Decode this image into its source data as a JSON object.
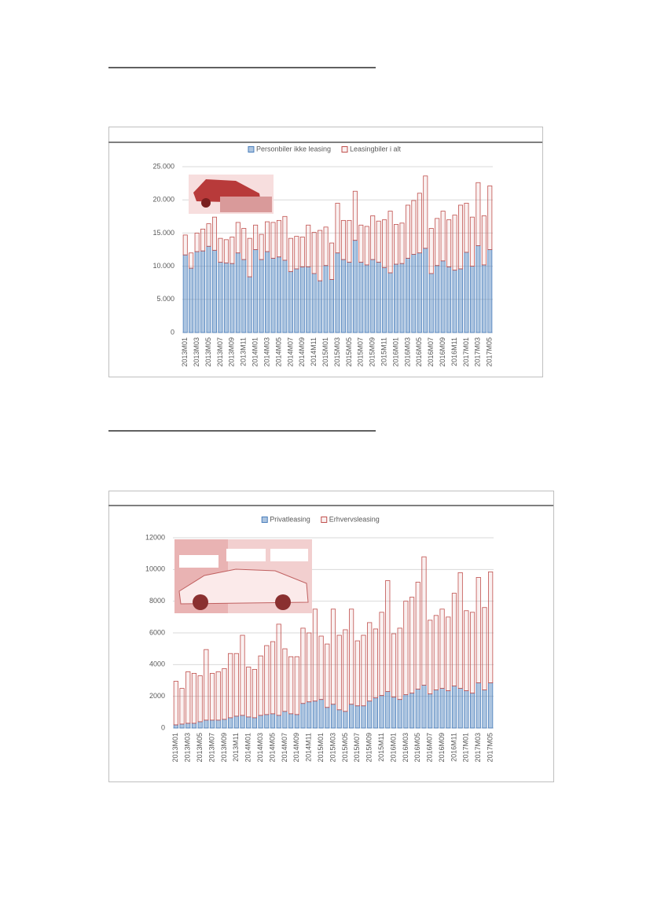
{
  "chart_data": [
    {
      "type": "bar",
      "stacked": true,
      "legend": "top",
      "categories": [
        "2013M01",
        null,
        "2013M03",
        null,
        "2013M05",
        null,
        "2013M07",
        null,
        "2013M09",
        null,
        "2013M11",
        null,
        "2014M01",
        null,
        "2014M03",
        null,
        "2014M05",
        null,
        "2014M07",
        null,
        "2014M09",
        null,
        "2014M11",
        null,
        "2015M01",
        null,
        "2015M03",
        null,
        "2015M05",
        null,
        "2015M07",
        null,
        "2015M09",
        null,
        "2015M11",
        null,
        "2016M01",
        null,
        "2016M03",
        null,
        "2016M05",
        null,
        "2016M07",
        null,
        "2016M09",
        null,
        "2016M11",
        null,
        "2017M01",
        null,
        "2017M03",
        null,
        "2017M05"
      ],
      "series": [
        {
          "name": "Personbiler ikke leasing",
          "color": "#4a7ebb",
          "values": [
            11700,
            9700,
            12200,
            12300,
            13000,
            12400,
            10600,
            10500,
            10400,
            12000,
            11000,
            8400,
            12500,
            11000,
            12200,
            11200,
            11400,
            10900,
            9200,
            9600,
            9900,
            9900,
            8900,
            7800,
            10100,
            8000,
            12000,
            11000,
            10600,
            13900,
            10600,
            10200,
            11000,
            10600,
            9800,
            9000,
            10300,
            10400,
            11200,
            11800,
            12000,
            12700,
            8900,
            10100,
            10800,
            9900,
            9400,
            9600,
            12100,
            10000,
            13100,
            10200,
            12500
          ]
        },
        {
          "name": "Leasingbiler i alt",
          "color": "#c0504d",
          "values": [
            3000,
            2300,
            2800,
            3300,
            3400,
            5000,
            3600,
            3500,
            4000,
            4600,
            4700,
            5800,
            3700,
            3800,
            4500,
            5400,
            5500,
            6600,
            5000,
            4900,
            4500,
            6300,
            6200,
            7600,
            5800,
            5500,
            7500,
            5900,
            6300,
            7400,
            5600,
            5800,
            6600,
            6200,
            7200,
            9300,
            6000,
            6100,
            8000,
            8100,
            9000,
            10900,
            6800,
            7100,
            7500,
            7100,
            8300,
            9600,
            7400,
            7400,
            9500,
            7400,
            9600
          ]
        }
      ],
      "ylim": [
        0,
        25000
      ],
      "yticks": [
        0,
        {
          "value": 5000,
          "label": "5.000"
        },
        {
          "value": 10000,
          "label": "10.000"
        },
        {
          "value": 15000,
          "label": "15.000"
        },
        {
          "value": 20000,
          "label": "20.000"
        },
        {
          "value": 25000,
          "label": "25.000"
        }
      ],
      "grid": true
    },
    {
      "type": "bar",
      "stacked": true,
      "legend": "top",
      "categories": [
        "2013M01",
        null,
        "2013M03",
        null,
        "2013M05",
        null,
        "2013M07",
        null,
        "2013M09",
        null,
        "2013M11",
        null,
        "2014M01",
        null,
        "2014M03",
        null,
        "2014M05",
        null,
        "2014M07",
        null,
        "2014M09",
        null,
        "2014M11",
        null,
        "2015M01",
        null,
        "2015M03",
        null,
        "2015M05",
        null,
        "2015M07",
        null,
        "2015M09",
        null,
        "2015M11",
        null,
        "2016M01",
        null,
        "2016M03",
        null,
        "2016M05",
        null,
        "2016M07",
        null,
        "2016M09",
        null,
        "2016M11",
        null,
        "2017M01",
        null,
        "2017M03",
        null,
        "2017M05"
      ],
      "series": [
        {
          "name": "Privatleasing",
          "color": "#4a7ebb",
          "values": [
            200,
            250,
            300,
            300,
            400,
            500,
            500,
            500,
            550,
            650,
            750,
            800,
            700,
            650,
            800,
            850,
            900,
            800,
            1050,
            900,
            850,
            1550,
            1650,
            1700,
            1800,
            1300,
            1500,
            1150,
            1050,
            1500,
            1400,
            1400,
            1700,
            1900,
            2050,
            2300,
            1950,
            1800,
            2100,
            2200,
            2450,
            2700,
            2150,
            2400,
            2500,
            2350,
            2650,
            2500,
            2350,
            2200,
            2850,
            2400,
            2850
          ]
        },
        {
          "name": "Erhvervsleasing",
          "color": "#c0504d",
          "values": [
            2750,
            2250,
            3250,
            3150,
            2900,
            4450,
            2950,
            3050,
            3200,
            4050,
            3950,
            5050,
            3150,
            3050,
            3750,
            4350,
            4550,
            5750,
            3950,
            3600,
            3650,
            4750,
            4350,
            5800,
            4000,
            4000,
            6000,
            4700,
            5150,
            6000,
            4100,
            4450,
            4950,
            4350,
            5250,
            7000,
            4000,
            4500,
            5900,
            6050,
            6750,
            8100,
            4650,
            4700,
            5000,
            4650,
            5850,
            7300,
            5050,
            5100,
            6650,
            5200,
            7000
          ]
        }
      ],
      "ylim": [
        0,
        12000
      ],
      "yticks": [
        0,
        2000,
        4000,
        6000,
        8000,
        10000,
        12000
      ],
      "grid": true
    }
  ]
}
